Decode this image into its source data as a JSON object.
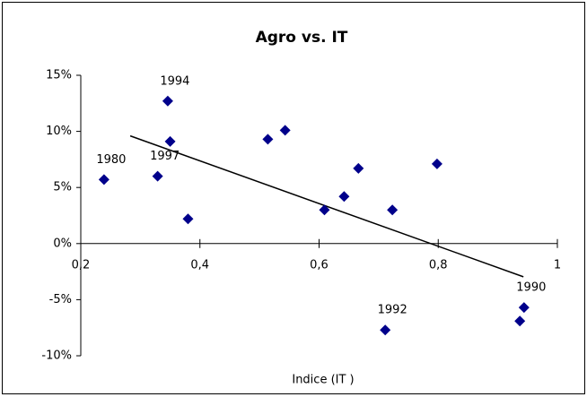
{
  "chart_data": {
    "type": "scatter",
    "title": "Agro vs. IT",
    "x_label": "Indice (IT )",
    "series": [
      {
        "color": "#00008b",
        "x": [
          0.239,
          0.329,
          0.346,
          0.35,
          0.38,
          0.514,
          0.543,
          0.609,
          0.642,
          0.666,
          0.723,
          0.798,
          0.711,
          0.944,
          0.937
        ],
        "values": [
          5.7,
          6.0,
          12.7,
          9.1,
          2.2,
          9.3,
          10.1,
          3.0,
          4.2,
          6.7,
          3.0,
          7.1,
          -7.7,
          -5.7,
          -6.9
        ],
        "labels": [
          "1980",
          "1997",
          "1994",
          null,
          null,
          null,
          null,
          null,
          null,
          null,
          null,
          null,
          "1992",
          "1990",
          null
        ]
      }
    ],
    "trendline": {
      "color": "#000000",
      "x": [
        0.283,
        0.943
      ],
      "y": [
        9.6,
        -2.96
      ]
    },
    "xlim": [
      0.2,
      1
    ],
    "ylim": [
      -10,
      15
    ],
    "xticks": [
      {
        "value": 0.2,
        "label": "0,2"
      },
      {
        "value": 0.4,
        "label": "0,4"
      },
      {
        "value": 0.6,
        "label": "0,6"
      },
      {
        "value": 0.8,
        "label": "0,8"
      },
      1
    ],
    "yticks": [
      {
        "value": -10,
        "label": "-10%"
      },
      {
        "value": -5,
        "label": "-5%"
      },
      {
        "value": 0,
        "label": "0%"
      },
      {
        "value": 5,
        "label": "5%"
      },
      {
        "value": 10,
        "label": "10%"
      },
      {
        "value": 15,
        "label": "15%"
      }
    ]
  }
}
